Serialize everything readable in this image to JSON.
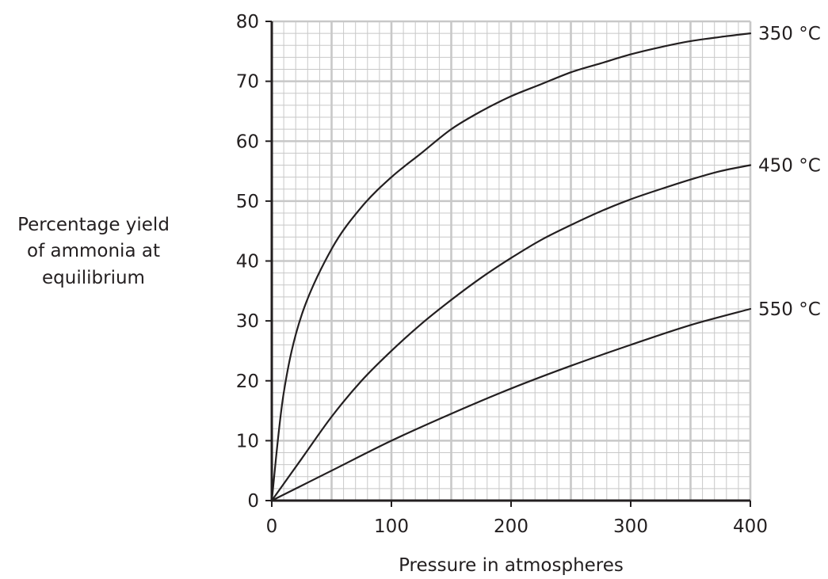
{
  "chart_data": {
    "type": "line",
    "xlabel": "Pressure in atmospheres",
    "ylabel_lines": [
      "Percentage yield",
      "of ammonia at",
      "equilibrium"
    ],
    "xlim": [
      0,
      400
    ],
    "ylim": [
      0,
      80
    ],
    "x_ticks": [
      "0",
      "100",
      "200",
      "300",
      "400"
    ],
    "y_ticks": [
      "0",
      "10",
      "20",
      "30",
      "40",
      "50",
      "60",
      "70",
      "80"
    ],
    "grid": true,
    "grid_color": "#c8c8c8",
    "line_color": "#231f20",
    "series": [
      {
        "name": "350 °C",
        "x": [
          0,
          10,
          25,
          50,
          75,
          100,
          125,
          150,
          175,
          200,
          225,
          250,
          275,
          300,
          325,
          350,
          375,
          400
        ],
        "y": [
          0,
          18,
          31,
          42,
          49,
          54,
          58,
          62,
          65,
          67.5,
          69.5,
          71.5,
          73,
          74.5,
          75.7,
          76.7,
          77.4,
          78
        ]
      },
      {
        "name": "450 °C",
        "x": [
          0,
          25,
          50,
          75,
          100,
          125,
          150,
          175,
          200,
          225,
          250,
          275,
          300,
          325,
          350,
          375,
          400
        ],
        "y": [
          0,
          7,
          14,
          20,
          25,
          29.5,
          33.5,
          37.2,
          40.5,
          43.5,
          46,
          48.3,
          50.3,
          52,
          53.6,
          55,
          56
        ]
      },
      {
        "name": "550 °C",
        "x": [
          0,
          50,
          100,
          150,
          200,
          250,
          300,
          350,
          400
        ],
        "y": [
          0,
          5,
          10,
          14.5,
          18.7,
          22.5,
          26,
          29.3,
          32
        ]
      }
    ]
  }
}
